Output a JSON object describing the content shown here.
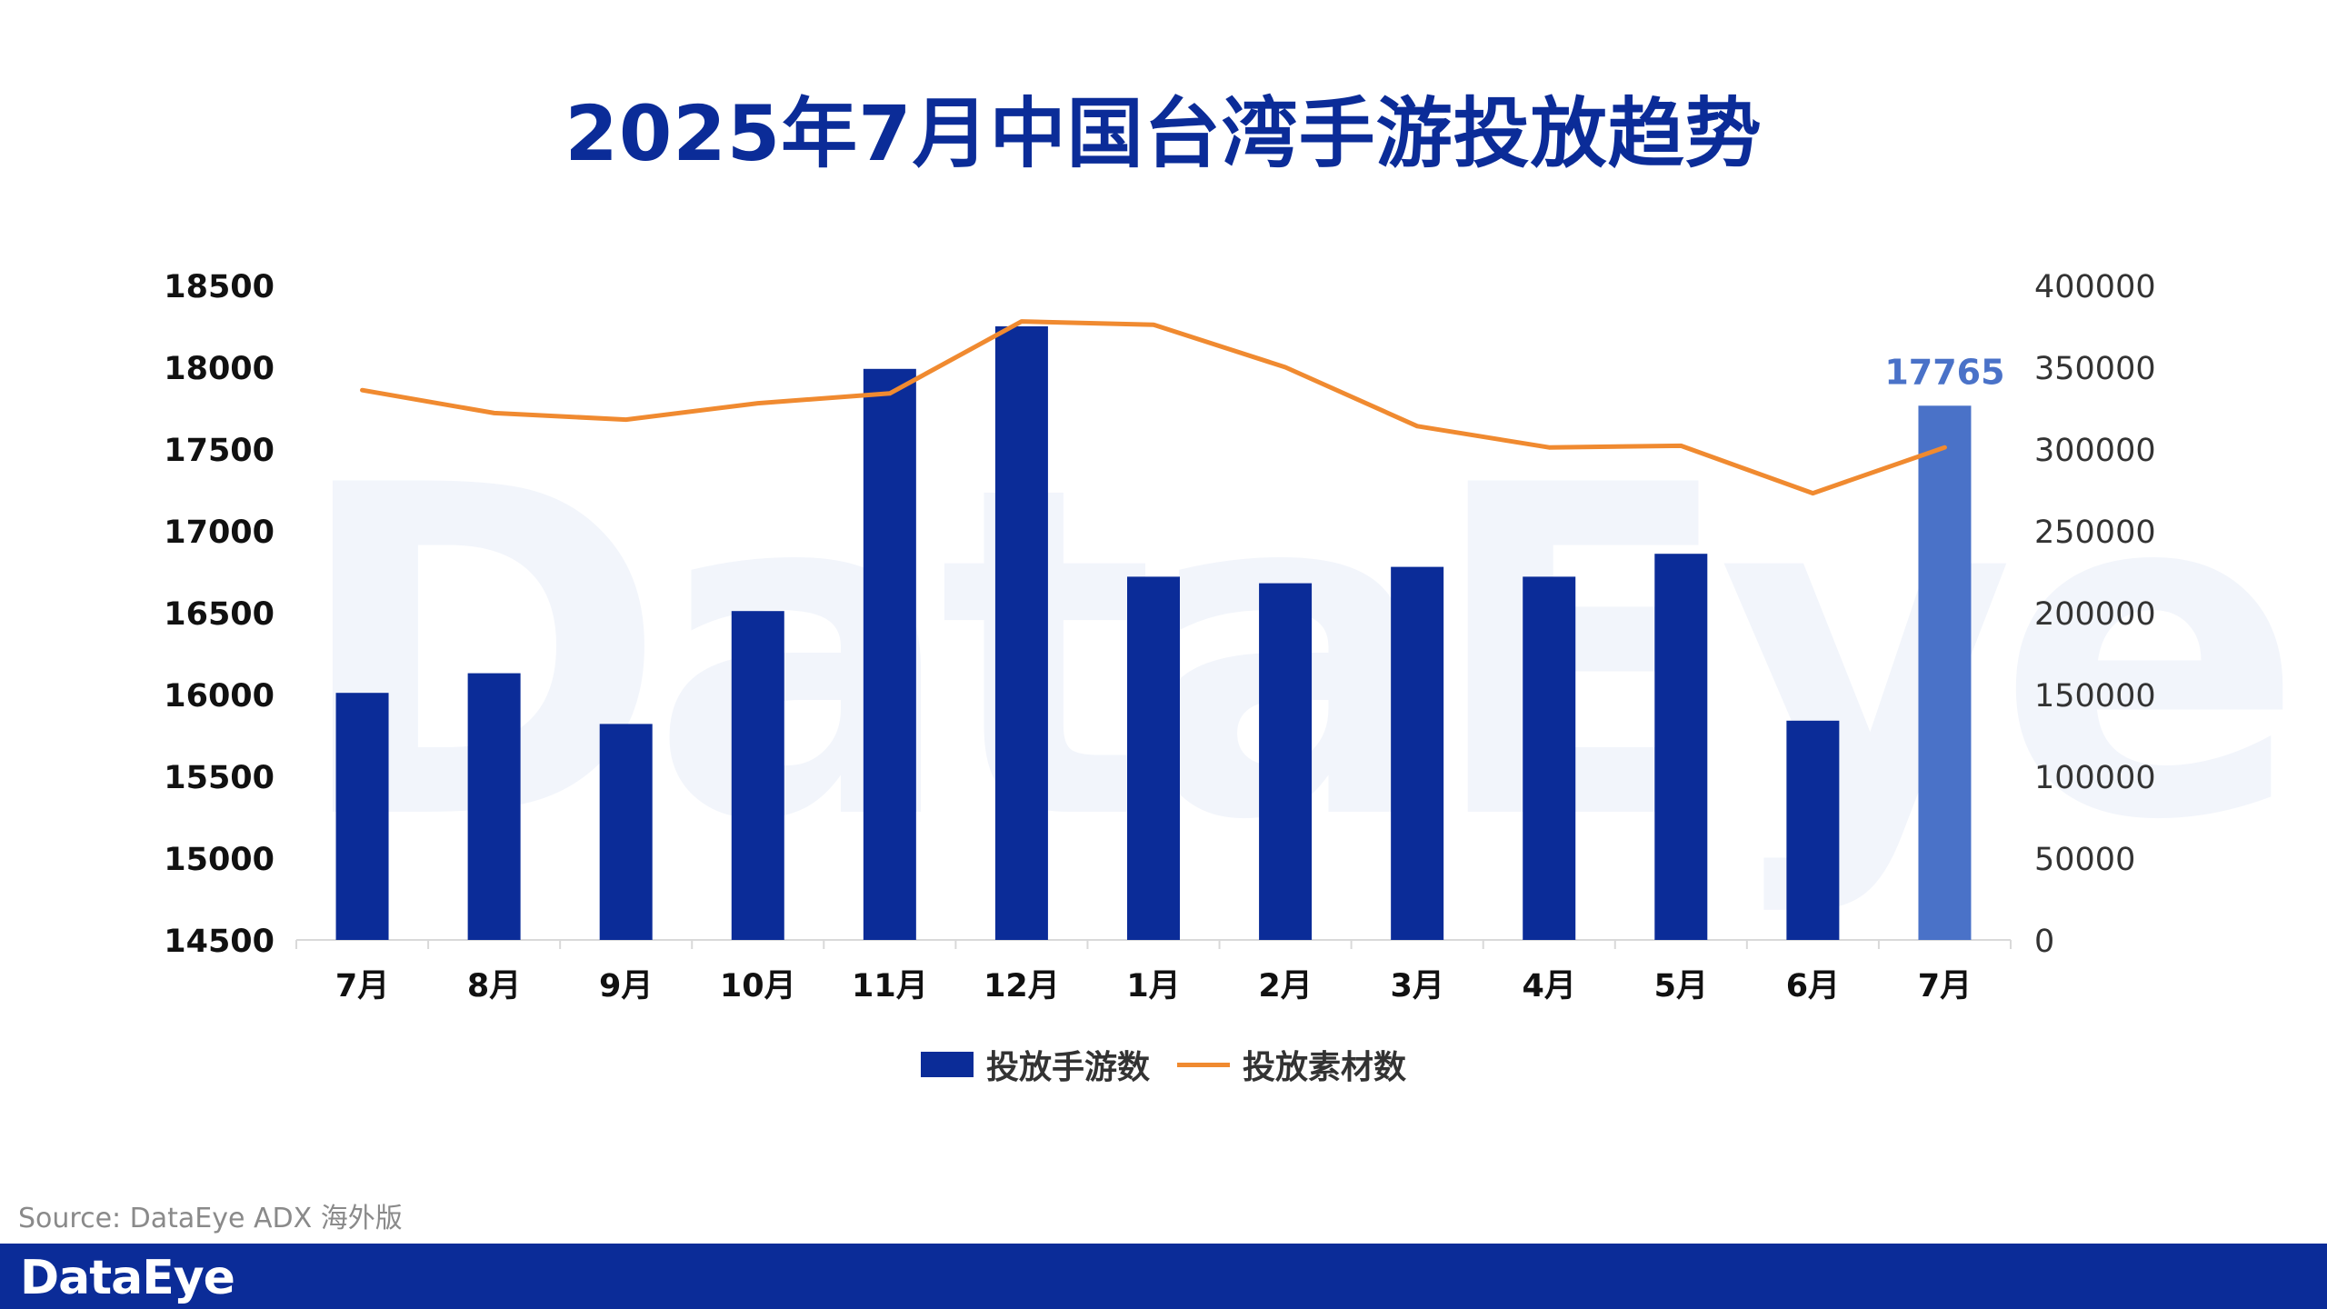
{
  "title": "2025年7月中国台湾手游投放趋势",
  "watermark": "DataEye",
  "source": "Source: DataEye ADX 海外版",
  "footer_logo": "DataEye",
  "colors": {
    "bar": "#0B2C98",
    "bar_highlight": "#4A72C8",
    "line": "#F08A30",
    "title": "#0B2C98"
  },
  "chart_data": {
    "type": "bar",
    "title": "2025年7月中国台湾手游投放趋势",
    "categories": [
      "7月",
      "8月",
      "9月",
      "10月",
      "11月",
      "12月",
      "1月",
      "2月",
      "3月",
      "4月",
      "5月",
      "6月",
      "7月"
    ],
    "series": [
      {
        "name": "投放手游数",
        "type": "bar",
        "axis": "left",
        "values": [
          16010,
          16130,
          15820,
          16510,
          17990,
          18250,
          16720,
          16680,
          16780,
          16720,
          16860,
          15840,
          17765
        ]
      },
      {
        "name": "投放素材数",
        "type": "line",
        "axis": "right",
        "values": [
          336000,
          322000,
          318000,
          328000,
          334000,
          378000,
          376000,
          350000,
          314000,
          301000,
          302000,
          273000,
          301000
        ]
      }
    ],
    "highlight_index": 12,
    "data_labels": [
      {
        "index": 12,
        "text": "17765"
      }
    ],
    "y_left": {
      "min": 14500,
      "max": 18500,
      "ticks": [
        14500,
        15000,
        15500,
        16000,
        16500,
        17000,
        17500,
        18000,
        18500
      ]
    },
    "y_right": {
      "min": 0,
      "max": 400000,
      "ticks": [
        0,
        50000,
        100000,
        150000,
        200000,
        250000,
        300000,
        350000,
        400000
      ]
    },
    "grid": false,
    "legend": "bottom-center",
    "legend_entries": [
      "投放手游数",
      "投放素材数"
    ]
  }
}
